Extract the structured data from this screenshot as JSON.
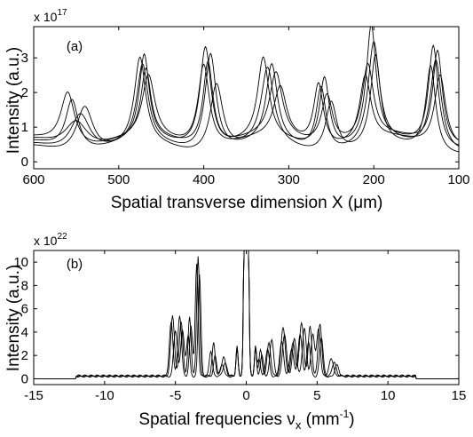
{
  "chart_data": [
    {
      "type": "line",
      "panel_label": "(a)",
      "xlabel": "Spatial transverse dimension X (μm)",
      "ylabel": "Intensity (a.u.)",
      "y_multiplier_base": "x 10",
      "y_multiplier_exp": "17",
      "xlim": [
        600,
        100
      ],
      "ylim": [
        -0.2,
        3.9
      ],
      "x_reversed": true,
      "xticks": [
        600,
        500,
        400,
        300,
        200,
        100
      ],
      "yticks": [
        0,
        1,
        2,
        3
      ],
      "grid": false,
      "legend": "none",
      "line_color": "#000000",
      "series": [
        {
          "peaks": [
            [
              555,
              1.9,
              9
            ],
            [
              470,
              2.9,
              7
            ],
            [
              398,
              3.4,
              8
            ],
            [
              330,
              2.8,
              8
            ],
            [
              258,
              2.5,
              7
            ],
            [
              203,
              3.8,
              7
            ],
            [
              130,
              3.4,
              7
            ]
          ],
          "baseline": 0.45
        },
        {
          "peaks": [
            [
              545,
              1.5,
              14
            ],
            [
              472,
              2.6,
              8
            ],
            [
              392,
              3.2,
              8
            ],
            [
              320,
              2.6,
              8
            ],
            [
              262,
              2.2,
              7
            ],
            [
              200,
              3.3,
              8
            ],
            [
              127,
              3.0,
              8
            ]
          ],
          "baseline": 0.35
        },
        {
          "peaks": [
            [
              560,
              2.1,
              10
            ],
            [
              468,
              2.5,
              7
            ],
            [
              395,
              3.0,
              7
            ],
            [
              315,
              2.4,
              9
            ],
            [
              255,
              2.0,
              8
            ],
            [
              207,
              2.7,
              8
            ],
            [
              125,
              3.3,
              7
            ]
          ],
          "baseline": 0.55
        },
        {
          "peaks": [
            [
              540,
              1.7,
              12
            ],
            [
              475,
              2.8,
              8
            ],
            [
              385,
              2.3,
              9
            ],
            [
              325,
              2.5,
              9
            ],
            [
              250,
              1.8,
              8
            ],
            [
              198,
              2.9,
              7
            ],
            [
              133,
              2.8,
              7
            ]
          ],
          "baseline": 0.3
        },
        {
          "peaks": [
            [
              550,
              1.3,
              16
            ],
            [
              465,
              2.3,
              9
            ],
            [
              400,
              2.9,
              8
            ],
            [
              310,
              2.0,
              9
            ],
            [
              265,
              2.3,
              7
            ],
            [
              210,
              2.4,
              8
            ],
            [
              122,
              2.6,
              8
            ]
          ],
          "baseline": 0.5
        }
      ]
    },
    {
      "type": "line",
      "panel_label": "(b)",
      "xlabel_base": "Spatial frequencies ν",
      "xlabel_sub": "x",
      "xlabel_unit": " (mm",
      "xlabel_unit_exp": "-1",
      "xlabel_close": ")",
      "ylabel": "Intensity (a.u.)",
      "y_multiplier_base": "x 10",
      "y_multiplier_exp": "22",
      "xlim": [
        -15,
        15
      ],
      "ylim": [
        -0.5,
        11
      ],
      "xticks": [
        -15,
        -10,
        -5,
        0,
        5,
        10,
        15
      ],
      "yticks": [
        0,
        2,
        4,
        6,
        8,
        10
      ],
      "grid": false,
      "legend": "none",
      "line_color": "#000000",
      "series": [
        {
          "peaks": [
            [
              -5.2,
              5.2,
              0.18
            ],
            [
              -4.6,
              4.6,
              0.18
            ],
            [
              -4.0,
              5.0,
              0.15
            ],
            [
              -3.4,
              10.3,
              0.14
            ],
            [
              -2.3,
              2.8,
              0.15
            ],
            [
              -1.6,
              1.6,
              0.2
            ],
            [
              1.0,
              2.2,
              0.15
            ],
            [
              1.6,
              2.8,
              0.18
            ],
            [
              2.6,
              4.2,
              0.2
            ],
            [
              3.3,
              2.8,
              0.2
            ],
            [
              3.9,
              4.6,
              0.2
            ],
            [
              4.5,
              4.2,
              0.18
            ],
            [
              5.2,
              4.5,
              0.18
            ],
            [
              6.0,
              1.5,
              0.2
            ]
          ],
          "baseline": 0.3
        },
        {
          "peaks": [
            [
              -5.3,
              4.6,
              0.18
            ],
            [
              -4.7,
              5.2,
              0.18
            ],
            [
              -3.9,
              4.3,
              0.15
            ],
            [
              -3.5,
              9.6,
              0.14
            ],
            [
              -2.5,
              2.2,
              0.15
            ],
            [
              -1.5,
              1.1,
              0.2
            ],
            [
              1.1,
              1.8,
              0.15
            ],
            [
              1.8,
              3.2,
              0.18
            ],
            [
              2.7,
              3.6,
              0.2
            ],
            [
              3.4,
              3.2,
              0.2
            ],
            [
              4.1,
              4.1,
              0.2
            ],
            [
              4.7,
              3.6,
              0.18
            ],
            [
              5.1,
              4.0,
              0.18
            ],
            [
              6.2,
              1.2,
              0.2
            ]
          ],
          "baseline": 0.25
        },
        {
          "peaks": [
            [
              -5.0,
              4.0,
              0.18
            ],
            [
              -4.5,
              4.0,
              0.18
            ],
            [
              -4.1,
              3.6,
              0.15
            ],
            [
              -3.3,
              8.8,
              0.14
            ],
            [
              -2.2,
              1.8,
              0.15
            ],
            [
              -1.7,
              1.0,
              0.2
            ],
            [
              0.9,
              1.5,
              0.15
            ],
            [
              1.5,
              2.4,
              0.18
            ],
            [
              2.5,
              3.0,
              0.2
            ],
            [
              3.2,
              2.4,
              0.2
            ],
            [
              3.8,
              3.6,
              0.2
            ],
            [
              4.4,
              3.0,
              0.18
            ],
            [
              5.3,
              3.4,
              0.18
            ],
            [
              6.4,
              1.0,
              0.2
            ]
          ],
          "baseline": 0.2
        }
      ]
    }
  ]
}
